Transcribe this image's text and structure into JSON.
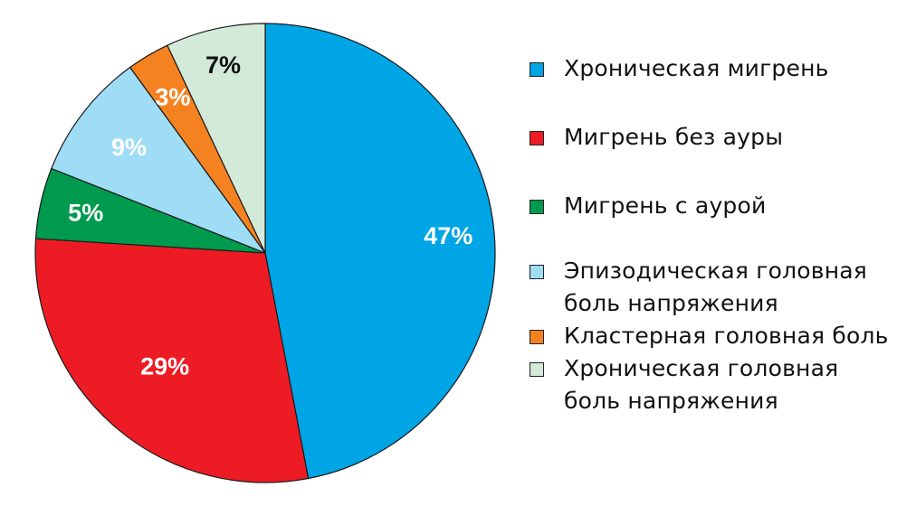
{
  "chart_data": {
    "type": "pie",
    "start_angle_deg": 0,
    "direction": "clockwise",
    "slices": [
      {
        "label": "Хроническая мигрень",
        "value": 47,
        "display": "47%",
        "color": "#00a5e6",
        "text_color": "#ffffff"
      },
      {
        "label": "Мигрень без ауры",
        "value": 29,
        "display": "29%",
        "color": "#ed1c24",
        "text_color": "#ffffff"
      },
      {
        "label": "Мигрень с аурой",
        "value": 5,
        "display": "5%",
        "color": "#009a4e",
        "text_color": "#ffffff"
      },
      {
        "label": "Эпизодическая головная боль напряжения",
        "value": 9,
        "display": "9%",
        "color": "#9fdcf5",
        "text_color": "#ffffff"
      },
      {
        "label": "Кластерная головная боль",
        "value": 3,
        "display": "3%",
        "color": "#f58220",
        "text_color": "#ffffff"
      },
      {
        "label": "Хроническая головная боль напряжения",
        "value": 7,
        "display": "7%",
        "color": "#d3ead8",
        "text_color": "#111111"
      }
    ],
    "legend_position": "right"
  },
  "legend": [
    {
      "label": "Хроническая мигрень",
      "color": "#00a5e6"
    },
    {
      "label": "Мигрень без ауры",
      "color": "#ed1c24"
    },
    {
      "label": "Мигрень с аурой",
      "color": "#009a4e"
    },
    {
      "label": "Эпизодическая головная боль напряжения",
      "color": "#9fdcf5"
    },
    {
      "label": "Кластерная головная боль",
      "color": "#f58220"
    },
    {
      "label": "Хроническая головная боль напряжения",
      "color": "#d3ead8"
    }
  ]
}
